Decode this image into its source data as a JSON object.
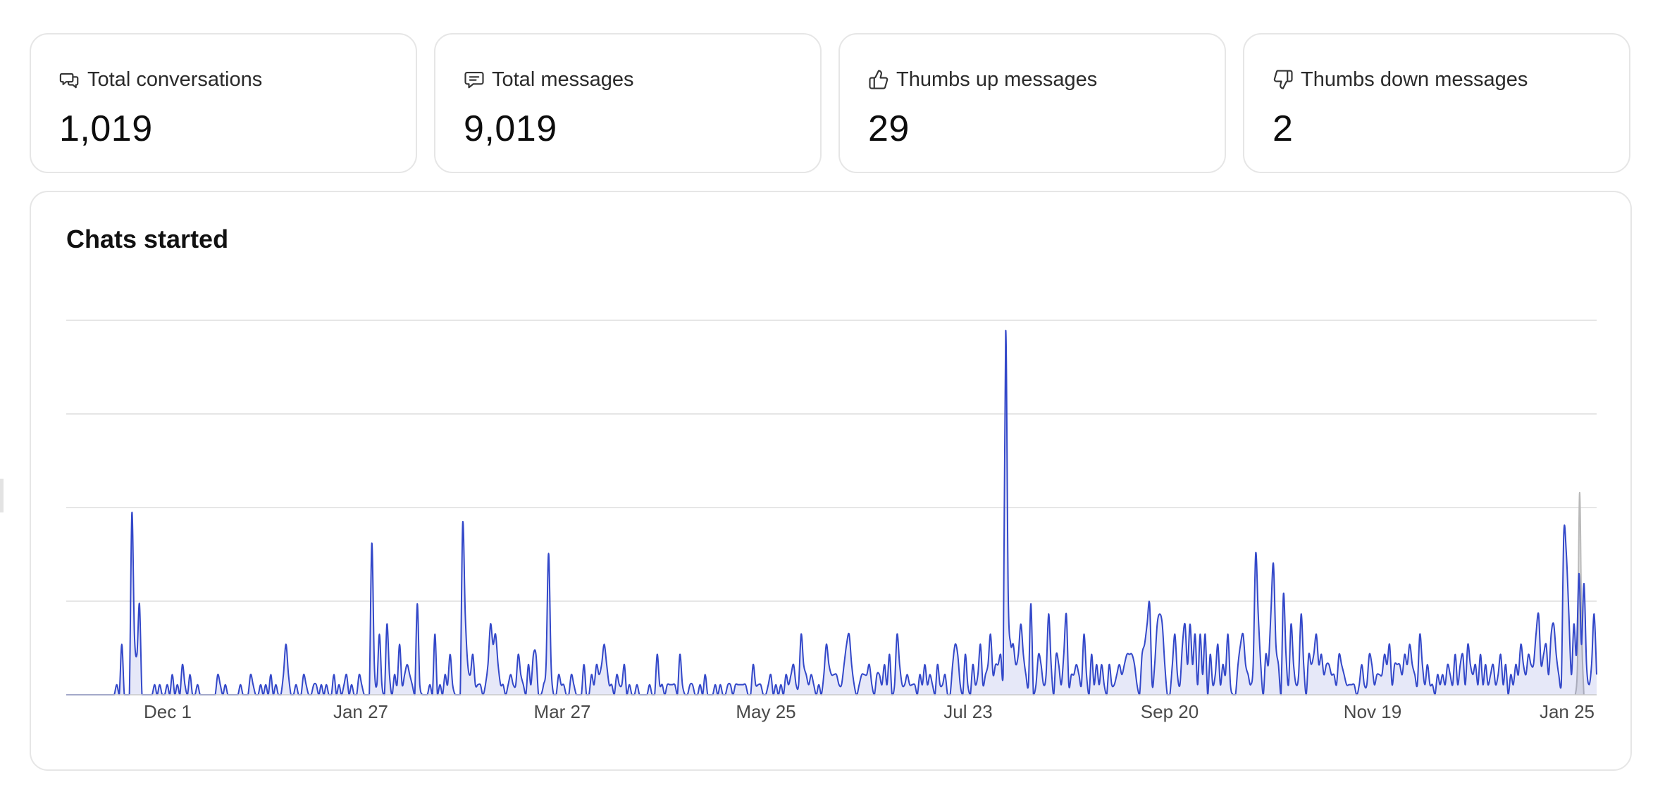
{
  "stats": [
    {
      "label": "Total conversations",
      "value": "1,019",
      "icon": "chat-bubbles-icon"
    },
    {
      "label": "Total messages",
      "value": "9,019",
      "icon": "message-icon"
    },
    {
      "label": "Thumbs up messages",
      "value": "29",
      "icon": "thumbs-up-icon"
    },
    {
      "label": "Thumbs down messages",
      "value": "2",
      "icon": "thumbs-down-icon"
    }
  ],
  "chart": {
    "title": "Chats started"
  },
  "chart_data": {
    "type": "area",
    "title": "Chats started",
    "xlabel": "",
    "ylabel": "",
    "ylim": [
      0,
      40
    ],
    "grid": true,
    "x_tick_labels": [
      "Dec 1",
      "Jan 27",
      "Mar 27",
      "May 25",
      "Jul 23",
      "Sep 20",
      "Nov 19",
      "Jan 25"
    ],
    "series_colors": {
      "current": "#3348c9",
      "previous": "#b9b9b9"
    },
    "series": [
      {
        "values": [
          0,
          0,
          0,
          0,
          0,
          0,
          0,
          0,
          0,
          0,
          0,
          0,
          0,
          0,
          0,
          0,
          0,
          0,
          0,
          0,
          1,
          0,
          5,
          0,
          0,
          0,
          18,
          6,
          4,
          9,
          0,
          0,
          0,
          0,
          0,
          1,
          0,
          1,
          0,
          0,
          1,
          0,
          2,
          0,
          1,
          0,
          3,
          1,
          0,
          2,
          0,
          0,
          1,
          0,
          0,
          0,
          0,
          0,
          0,
          0,
          2,
          1,
          0,
          1,
          0,
          0,
          0,
          0,
          0,
          1,
          0,
          0,
          0,
          2,
          1,
          0,
          0,
          1,
          0,
          1,
          0,
          2,
          0,
          1,
          0,
          0,
          2,
          5,
          2,
          0,
          0,
          1,
          0,
          0,
          2,
          1,
          0,
          0,
          1,
          1,
          0,
          1,
          0,
          1,
          0,
          0,
          2,
          0,
          1,
          0,
          1,
          2,
          0,
          1,
          0,
          0,
          2,
          1,
          0,
          0,
          0,
          15,
          3,
          1,
          6,
          1,
          0,
          7,
          2,
          0,
          2,
          1,
          5,
          1,
          2,
          3,
          2,
          1,
          0,
          9,
          1,
          0,
          0,
          0,
          1,
          0,
          6,
          0,
          1,
          0,
          2,
          1,
          4,
          1,
          0,
          0,
          0,
          17,
          8,
          3,
          2,
          4,
          1,
          1,
          1,
          0,
          1,
          3,
          7,
          5,
          6,
          3,
          1,
          1,
          0,
          1,
          2,
          1,
          1,
          4,
          2,
          1,
          0,
          3,
          1,
          4,
          4,
          0,
          0,
          1,
          3,
          14,
          3,
          0,
          0,
          2,
          1,
          1,
          0,
          0,
          2,
          1,
          0,
          0,
          0,
          3,
          0,
          0,
          2,
          1,
          3,
          2,
          3,
          5,
          3,
          1,
          1,
          0,
          2,
          1,
          1,
          3,
          0,
          1,
          0,
          0,
          1,
          0,
          0,
          0,
          0,
          1,
          0,
          0,
          4,
          1,
          1,
          0,
          1,
          1,
          1,
          1,
          0,
          4,
          1,
          0,
          0,
          1,
          1,
          0,
          0,
          1,
          0,
          2,
          0,
          0,
          0,
          1,
          0,
          1,
          0,
          0,
          1,
          1,
          0,
          1,
          1,
          1,
          1,
          1,
          0,
          0,
          3,
          1,
          1,
          1,
          0,
          0,
          1,
          2,
          0,
          1,
          0,
          1,
          0,
          2,
          1,
          2,
          3,
          1,
          1,
          6,
          3,
          2,
          1,
          2,
          1,
          0,
          1,
          0,
          2,
          5,
          3,
          2,
          2,
          2,
          1,
          1,
          3,
          5,
          6,
          3,
          1,
          0,
          1,
          2,
          2,
          2,
          3,
          1,
          0,
          2,
          2,
          1,
          3,
          1,
          4,
          0,
          1,
          6,
          3,
          1,
          1,
          2,
          1,
          1,
          1,
          0,
          2,
          1,
          3,
          1,
          2,
          1,
          0,
          3,
          1,
          1,
          2,
          0,
          0,
          3,
          5,
          4,
          1,
          0,
          4,
          1,
          0,
          3,
          1,
          2,
          5,
          1,
          2,
          3,
          6,
          2,
          3,
          3,
          4,
          2,
          36,
          10,
          5,
          5,
          3,
          4,
          7,
          4,
          2,
          1,
          9,
          0,
          1,
          4,
          3,
          1,
          2,
          8,
          3,
          0,
          4,
          3,
          1,
          4,
          8,
          1,
          2,
          2,
          3,
          2,
          1,
          6,
          2,
          0,
          4,
          1,
          3,
          1,
          3,
          1,
          0,
          3,
          1,
          1,
          2,
          3,
          2,
          3,
          4,
          4,
          4,
          3,
          1,
          0,
          4,
          5,
          7,
          9,
          1,
          3,
          7,
          8,
          7,
          3,
          0,
          0,
          3,
          6,
          2,
          1,
          5,
          7,
          3,
          7,
          3,
          6,
          1,
          6,
          2,
          6,
          0,
          4,
          1,
          2,
          5,
          1,
          3,
          2,
          6,
          1,
          0,
          0,
          3,
          5,
          6,
          3,
          2,
          1,
          3,
          14,
          8,
          3,
          0,
          4,
          3,
          8,
          13,
          5,
          3,
          0,
          10,
          4,
          1,
          7,
          3,
          1,
          2,
          8,
          3,
          0,
          4,
          3,
          4,
          6,
          3,
          4,
          2,
          3,
          3,
          2,
          2,
          1,
          4,
          3,
          2,
          1,
          1,
          1,
          1,
          0,
          1,
          3,
          1,
          1,
          4,
          3,
          1,
          2,
          2,
          2,
          4,
          3,
          5,
          1,
          3,
          3,
          3,
          2,
          4,
          3,
          5,
          3,
          2,
          1,
          6,
          3,
          1,
          3,
          1,
          1,
          0,
          2,
          1,
          2,
          1,
          3,
          2,
          1,
          4,
          1,
          3,
          4,
          1,
          5,
          3,
          2,
          3,
          1,
          4,
          1,
          3,
          1,
          2,
          3,
          1,
          2,
          4,
          1,
          3,
          0,
          2,
          1,
          3,
          2,
          5,
          3,
          2,
          4,
          3,
          3,
          6,
          8,
          3,
          4,
          5,
          2,
          6,
          7,
          4,
          2,
          1,
          16,
          14,
          8,
          2,
          7,
          4,
          12,
          5,
          11,
          3,
          1,
          3,
          8,
          2
        ]
      },
      {
        "values": [
          0,
          0,
          0,
          0,
          0,
          0,
          0,
          0,
          0,
          0,
          0,
          0,
          0,
          0,
          0,
          0,
          0,
          0,
          0,
          0,
          0,
          0,
          0,
          0,
          0,
          0,
          0,
          0,
          0,
          0,
          0,
          0,
          0,
          0,
          0,
          0,
          0,
          0,
          0,
          0,
          0,
          0,
          0,
          0,
          0,
          0,
          0,
          0,
          0,
          0,
          0,
          0,
          0,
          0,
          0,
          0,
          0,
          0,
          0,
          0,
          0,
          0,
          0,
          0,
          0,
          0,
          0,
          0,
          0,
          0,
          0,
          0,
          0,
          0,
          0,
          0,
          0,
          0,
          0,
          0,
          0,
          0,
          0,
          0,
          0,
          0,
          0,
          0,
          0,
          0,
          0,
          0,
          0,
          0,
          0,
          0,
          0,
          0,
          0,
          0,
          0,
          0,
          0,
          0,
          0,
          0,
          0,
          0,
          0,
          0,
          0,
          0,
          0,
          0,
          0,
          0,
          0,
          0,
          0,
          0,
          0,
          0,
          0,
          0,
          0,
          0,
          0,
          0,
          0,
          0,
          0,
          0,
          0,
          0,
          0,
          0,
          0,
          0,
          0,
          0,
          0,
          0,
          0,
          0,
          0,
          0,
          0,
          0,
          0,
          0,
          0,
          0,
          0,
          0,
          0,
          0,
          0,
          0,
          0,
          0,
          0,
          0,
          0,
          0,
          0,
          0,
          0,
          0,
          0,
          0,
          0,
          0,
          0,
          0,
          0,
          0,
          0,
          0,
          0,
          0,
          0,
          0,
          0,
          0,
          0,
          0,
          0,
          0,
          0,
          0,
          0,
          0,
          0,
          0,
          0,
          0,
          0,
          0,
          0,
          0,
          0,
          0,
          0,
          0,
          0,
          0,
          0,
          0,
          0,
          0,
          0,
          0,
          0,
          0,
          0,
          0,
          0,
          0,
          0,
          0,
          0,
          0,
          0,
          0,
          0,
          0,
          0,
          0,
          0,
          0,
          0,
          0,
          0,
          0,
          0,
          0,
          0,
          0,
          0,
          0,
          0,
          0,
          0,
          0,
          0,
          0,
          0,
          0,
          0,
          0,
          0,
          0,
          0,
          0,
          0,
          0,
          0,
          0,
          0,
          0,
          0,
          0,
          0,
          0,
          0,
          0,
          0,
          0,
          0,
          0,
          0,
          0,
          0,
          0,
          0,
          0,
          0,
          0,
          0,
          0,
          0,
          0,
          0,
          0,
          0,
          0,
          0,
          0,
          0,
          0,
          0,
          0,
          0,
          0,
          0,
          0,
          0,
          0,
          0,
          0,
          0,
          0,
          0,
          0,
          0,
          0,
          0,
          0,
          0,
          0,
          0,
          0,
          0,
          0,
          0,
          0,
          0,
          0,
          0,
          0,
          0,
          0,
          0,
          0,
          0,
          0,
          0,
          0,
          0,
          0,
          0,
          0,
          0,
          0,
          0,
          0,
          0,
          0,
          0,
          0,
          0,
          0,
          0,
          0,
          0,
          0,
          0,
          0,
          0,
          0,
          0,
          0,
          0,
          0,
          0,
          0,
          0,
          0,
          0,
          0,
          0,
          0,
          0,
          0,
          0,
          0,
          0,
          0,
          0,
          0,
          0,
          0,
          0,
          0,
          0,
          0,
          0,
          0,
          0,
          0,
          0,
          0,
          0,
          0,
          0,
          0,
          0,
          0,
          0,
          0,
          0,
          0,
          0,
          0,
          0,
          0,
          0,
          0,
          0,
          0,
          0,
          0,
          0,
          0,
          0,
          0,
          0,
          0,
          0,
          0,
          0,
          0,
          0,
          0,
          0,
          0,
          0,
          0,
          0,
          0,
          0,
          0,
          0,
          0,
          0,
          0,
          0,
          0,
          0,
          0,
          0,
          0,
          0,
          0,
          0,
          0,
          0,
          0,
          0,
          0,
          0,
          0,
          0,
          0,
          0,
          0,
          0,
          0,
          0,
          0,
          0,
          0,
          0,
          0,
          0,
          0,
          0,
          0,
          0,
          0,
          0,
          0,
          0,
          0,
          0,
          0,
          0,
          0,
          0,
          0,
          0,
          0,
          0,
          0,
          0,
          0,
          0,
          0,
          0,
          0,
          0,
          0,
          0,
          0,
          0,
          0,
          0,
          0,
          0,
          0,
          0,
          0,
          0,
          0,
          0,
          0,
          0,
          0,
          0,
          0,
          0,
          0,
          0,
          0,
          0,
          0,
          0,
          0,
          0,
          0,
          0,
          0,
          0,
          0,
          0,
          0,
          0,
          0,
          0,
          0,
          0,
          0,
          0,
          0,
          0,
          0,
          0,
          0,
          0,
          0,
          0,
          0,
          0,
          0,
          0,
          0,
          0,
          0,
          0,
          0,
          0,
          0,
          0,
          0,
          0,
          0,
          0,
          0,
          0,
          0,
          0,
          0,
          0,
          0,
          0,
          0,
          0,
          0,
          0,
          0,
          0,
          0,
          0,
          0,
          0,
          0,
          0,
          0,
          0,
          0,
          0,
          0,
          0,
          0,
          0,
          0,
          0,
          0,
          0,
          0,
          0,
          0,
          0,
          0,
          0,
          0,
          0,
          0,
          0,
          0,
          0,
          0,
          0,
          0,
          0,
          0,
          0,
          0,
          0,
          0,
          0,
          0,
          0,
          0,
          0,
          0,
          0,
          0,
          0,
          0,
          0,
          0,
          0,
          0,
          0,
          0,
          0,
          0,
          0,
          0,
          0,
          0,
          0,
          0,
          0,
          0,
          0,
          0,
          0,
          0,
          0,
          0,
          0,
          0,
          0,
          0,
          0,
          0,
          0,
          0,
          0,
          0,
          0,
          0,
          0,
          0,
          0,
          0,
          0,
          0,
          0,
          0,
          0,
          0,
          0,
          0,
          0,
          0,
          0,
          0,
          0,
          0,
          0,
          0,
          0,
          0,
          0,
          0,
          0,
          0,
          0,
          0,
          0,
          0,
          0,
          0,
          0,
          0,
          0,
          0,
          0,
          0,
          0,
          0,
          0,
          0,
          0,
          0,
          0,
          0,
          0,
          0,
          0,
          0,
          0,
          0,
          0,
          0,
          0,
          0,
          0,
          0,
          0,
          0,
          0,
          0,
          0,
          0,
          0,
          0,
          3,
          20,
          6,
          0,
          0,
          0,
          0,
          0,
          0,
          0
        ]
      }
    ]
  }
}
